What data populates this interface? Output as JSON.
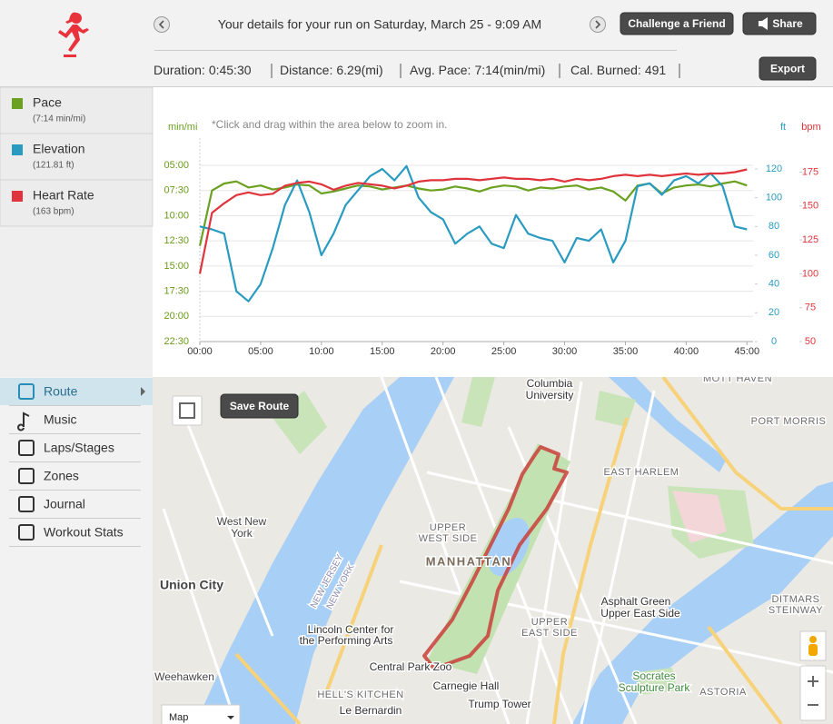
{
  "header": {
    "title": "Your details for your run on Saturday, March 25 - 9:09 AM",
    "buttons": [
      "Challenge a Friend",
      "Share",
      "Export"
    ],
    "stats": [
      {
        "label": "Duration:",
        "value": "0:45:30"
      },
      {
        "label": "Distance:",
        "value": "6.29(mi)"
      },
      {
        "label": "Avg. Pace:",
        "value": "7:14(min/mi)"
      },
      {
        "label": "Cal. Burned:",
        "value": "491"
      }
    ]
  },
  "legend": [
    {
      "name": "Pace",
      "detail": "(7:14 min/mi)"
    },
    {
      "name": "Elevation",
      "detail": "(121.81 ft)"
    },
    {
      "name": "Heart Rate",
      "detail": "(163 bpm)"
    }
  ],
  "menu": [
    "Route",
    "Music",
    "Laps/Stages",
    "Zones",
    "Journal",
    "Workout Stats"
  ],
  "chart_data": {
    "type": "line",
    "note": "*Click and drag within the area below to zoom in.",
    "y_label": "min/mi",
    "y2_label": "ft",
    "y3_label": "bpm",
    "x": [
      0,
      1,
      2,
      3,
      4,
      5,
      6,
      7,
      8,
      9,
      10,
      11,
      12,
      13,
      14,
      15,
      16,
      17,
      18,
      19,
      20,
      21,
      22,
      23,
      24,
      25,
      26,
      27,
      28,
      29,
      30,
      31,
      32,
      33,
      34,
      35,
      36,
      37,
      38,
      39,
      40,
      41,
      42,
      43,
      44,
      45
    ],
    "xlim": [
      0,
      45.5
    ],
    "xticks": [
      {
        "value": 0,
        "label": "00:00"
      },
      {
        "value": 5,
        "label": "05:00"
      },
      {
        "value": 10,
        "label": "10:00"
      },
      {
        "value": 15,
        "label": "15:00"
      },
      {
        "value": 20,
        "label": "20:00"
      },
      {
        "value": 25,
        "label": "25:00"
      },
      {
        "value": 30,
        "label": "30:00"
      },
      {
        "value": 35,
        "label": "35:00"
      },
      {
        "value": 40,
        "label": "40:00"
      },
      {
        "value": 45,
        "label": "45:00"
      }
    ],
    "ylim": [
      22.5,
      5
    ],
    "yticks": [
      {
        "value": 5,
        "label": "05:00"
      },
      {
        "value": 7.5,
        "label": "07:30"
      },
      {
        "value": 10,
        "label": "10:00"
      },
      {
        "value": 12.5,
        "label": "12:30"
      },
      {
        "value": 15,
        "label": "15:00"
      },
      {
        "value": 17.5,
        "label": "17:30"
      },
      {
        "value": 20,
        "label": "20:00"
      },
      {
        "value": 22.5,
        "label": "22:30"
      }
    ],
    "y2lim": [
      0,
      122.5
    ],
    "y2ticks": [
      0,
      20,
      40,
      60,
      80,
      100,
      120
    ],
    "y3lim": [
      50,
      180
    ],
    "y3ticks": [
      50,
      75,
      100,
      125,
      150,
      175
    ],
    "grid": true,
    "series": [
      {
        "name": "Pace",
        "color": "#6aa121",
        "axis": "y",
        "values": [
          13,
          7.5,
          6.8,
          6.6,
          7.2,
          7.0,
          7.4,
          7.2,
          6.9,
          7.0,
          7.8,
          7.6,
          7.3,
          7.0,
          7.1,
          7.4,
          7.2,
          7.0,
          7.3,
          7.5,
          7.4,
          7.1,
          7.3,
          7.6,
          7.2,
          7.0,
          7.1,
          7.5,
          7.2,
          7.3,
          7.1,
          7.0,
          7.4,
          7.2,
          7.6,
          8.5,
          7.0,
          6.8,
          7.8,
          7.2,
          7.0,
          6.9,
          7.1,
          6.8,
          6.6,
          7.0
        ]
      },
      {
        "name": "Elevation",
        "color": "#2a9bc0",
        "axis": "y2",
        "values": [
          80,
          78,
          75,
          35,
          28,
          40,
          65,
          95,
          112,
          90,
          60,
          75,
          95,
          105,
          115,
          120,
          112,
          122,
          100,
          90,
          85,
          68,
          75,
          80,
          68,
          65,
          88,
          75,
          72,
          70,
          55,
          72,
          70,
          78,
          55,
          70,
          108,
          110,
          102,
          112,
          115,
          110,
          117,
          108,
          80,
          78
        ]
      },
      {
        "name": "Heart Rate",
        "color": "#e0343c",
        "axis": "y3",
        "values": [
          100,
          145,
          152,
          158,
          160,
          158,
          159,
          165,
          167,
          168,
          166,
          162,
          165,
          167,
          166,
          165,
          163,
          165,
          168,
          169,
          169,
          170,
          170,
          169,
          170,
          171,
          170,
          170,
          169,
          170,
          168,
          170,
          169,
          170,
          172,
          173,
          172,
          173,
          172,
          173,
          174,
          173,
          174,
          174,
          175,
          177
        ]
      }
    ]
  },
  "map": {
    "save_button": "Save Route",
    "map_type": "Map",
    "labels": [
      "Columbia",
      "University",
      "MOTT HAVEN",
      "PORT MORRIS",
      "EAST HARLEM",
      "UPPER",
      "WEST SIDE",
      "MANHATTAN",
      "West New",
      "York",
      "Union City",
      "Lincoln Center for",
      "the Performing Arts",
      "Central Park Zoo",
      "Carnegie Hall",
      "HELL'S KITCHEN",
      "Le Bernardin",
      "Trump Tower",
      "Weehawken",
      "UPPER",
      "EAST SIDE",
      "Asphalt Green",
      "Upper East Side",
      "DITMARS",
      "STEINWAY",
      "Socrates",
      "Sculpture Park",
      "ASTORIA",
      "NEW JERSEY",
      "NEW YORK"
    ]
  }
}
